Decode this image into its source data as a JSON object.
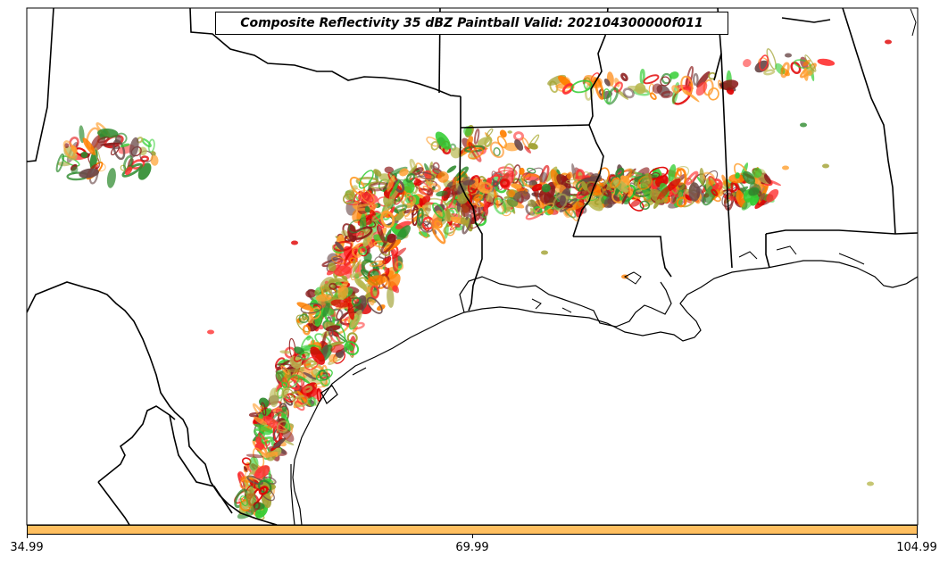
{
  "title": "Composite Reflectivity 35 dBZ Paintball Valid: 202104300000f011",
  "colorbar": {
    "ticks": [
      "34.99",
      "69.99",
      "104.99"
    ],
    "color": "#ffbf60"
  },
  "paintball_colors": [
    "#ff8000",
    "#e00000",
    "#ff3030",
    "#8b1a1a",
    "#32cd32",
    "#2e8b2e",
    "#a0a030",
    "#ffa030",
    "#6b4a4a",
    "#b8b850"
  ],
  "map_region": "Texas / Louisiana / Mississippi / Alabama Gulf Coast"
}
